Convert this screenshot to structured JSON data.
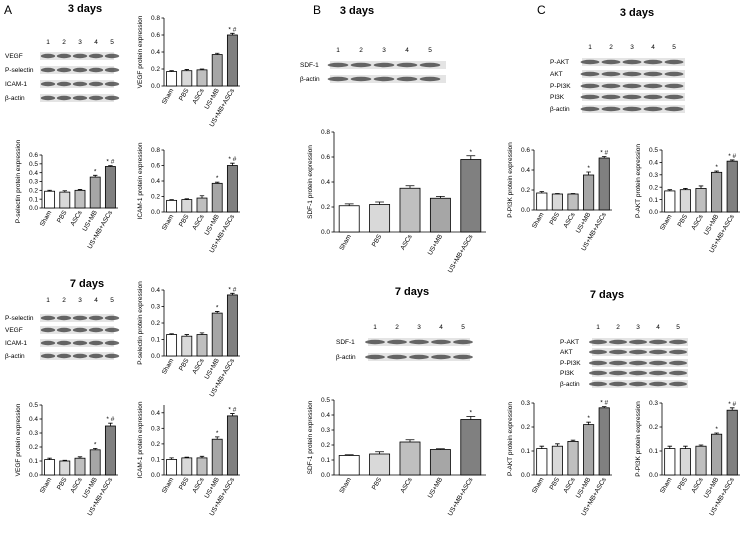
{
  "panels": [
    {
      "label": "A",
      "titles": [
        "3 days",
        "7 days"
      ]
    },
    {
      "label": "B",
      "titles": [
        "3 days",
        "7 days"
      ]
    },
    {
      "label": "C",
      "titles": [
        "3 days",
        "7 days"
      ]
    }
  ],
  "blots": [
    {
      "lanes": [
        "1",
        "2",
        "3",
        "4",
        "5"
      ],
      "proteins": [
        "VEGF",
        "P-selectin",
        "ICAM-1",
        "β-actin"
      ]
    },
    {
      "lanes": [
        "1",
        "2",
        "3",
        "4",
        "5"
      ],
      "proteins": [
        "P-selectin",
        "VEGF",
        "ICAM-1",
        "β-actin"
      ]
    },
    {
      "lanes": [
        "1",
        "2",
        "3",
        "4",
        "5"
      ],
      "proteins": [
        "SDF-1",
        "β-actin"
      ]
    },
    {
      "lanes": [
        "1",
        "2",
        "3",
        "4",
        "5"
      ],
      "proteins": [
        "SDF-1",
        "β-actin"
      ]
    },
    {
      "lanes": [
        "1",
        "2",
        "3",
        "4",
        "5"
      ],
      "proteins": [
        "P-AKT",
        "AKT",
        "P-PI3K",
        "PI3K",
        "β-actin"
      ]
    },
    {
      "lanes": [
        "1",
        "2",
        "3",
        "4",
        "5"
      ],
      "proteins": [
        "P-AKT",
        "AKT",
        "P-PI3K",
        "PI3K",
        "β-actin"
      ]
    }
  ],
  "chart_data": [
    {
      "type": "bar",
      "ylabel": "VEGF protein expression",
      "categories": [
        "Sham",
        "PBS",
        "ASCs",
        "US+MB",
        "US+MB+ASCs"
      ],
      "values": [
        0.17,
        0.18,
        0.19,
        0.37,
        0.6
      ],
      "errors": [
        0.01,
        0.015,
        0.01,
        0.015,
        0.02
      ],
      "annotations": [
        null,
        null,
        null,
        null,
        "* #"
      ],
      "colors": [
        "#ffffff",
        "#d9d9d9",
        "#bfbfbf",
        "#a6a6a6",
        "#808080"
      ],
      "ylim": [
        0,
        0.8
      ],
      "yticks": [
        {
          "value": 0,
          "label": "0.0"
        },
        0.2,
        0.4,
        0.6,
        0.8
      ]
    },
    {
      "type": "bar",
      "ylabel": "P-selectin protein expression",
      "categories": [
        "Sham",
        "PBS",
        "ASCs",
        "US+MB",
        "US+MB+ASCs"
      ],
      "values": [
        0.19,
        0.18,
        0.2,
        0.35,
        0.47
      ],
      "errors": [
        0.01,
        0.015,
        0.01,
        0.02,
        0.01
      ],
      "annotations": [
        null,
        null,
        null,
        "*",
        "* #"
      ],
      "colors": [
        "#ffffff",
        "#d9d9d9",
        "#bfbfbf",
        "#a6a6a6",
        "#808080"
      ],
      "ylim": [
        0,
        0.6
      ],
      "yticks": [
        {
          "value": 0,
          "label": "0.0"
        },
        0.1,
        0.2,
        0.3,
        0.4,
        0.5,
        0.6
      ]
    },
    {
      "type": "bar",
      "ylabel": "ICAM-1 protein expression",
      "categories": [
        "Sham",
        "PBS",
        "ASCs",
        "US+MB",
        "US+MB+ASCs"
      ],
      "values": [
        0.15,
        0.16,
        0.18,
        0.37,
        0.6
      ],
      "errors": [
        0.01,
        0.01,
        0.03,
        0.015,
        0.03
      ],
      "annotations": [
        null,
        null,
        null,
        "*",
        "* #"
      ],
      "colors": [
        "#ffffff",
        "#d9d9d9",
        "#bfbfbf",
        "#a6a6a6",
        "#808080"
      ],
      "ylim": [
        0,
        0.8
      ],
      "yticks": [
        {
          "value": 0,
          "label": "0.0"
        },
        0.2,
        0.4,
        0.6,
        0.8
      ]
    },
    {
      "type": "bar",
      "ylabel": "P-selectin protein expression",
      "categories": [
        "Sham",
        "PBS",
        "ASCs",
        "US+MB",
        "US+MB+ASCs"
      ],
      "values": [
        0.13,
        0.12,
        0.13,
        0.26,
        0.37
      ],
      "errors": [
        0.005,
        0.01,
        0.01,
        0.01,
        0.01
      ],
      "annotations": [
        null,
        null,
        null,
        "*",
        "* #"
      ],
      "colors": [
        "#ffffff",
        "#d9d9d9",
        "#bfbfbf",
        "#a6a6a6",
        "#808080"
      ],
      "ylim": [
        0,
        0.4
      ],
      "yticks": [
        {
          "value": 0,
          "label": "0.0"
        },
        0.1,
        0.2,
        0.3,
        0.4
      ]
    },
    {
      "type": "bar",
      "ylabel": "VEGF protein expression",
      "categories": [
        "Sham",
        "PBS",
        "ASCs",
        "US+MB",
        "US+MB+ASCs"
      ],
      "values": [
        0.11,
        0.1,
        0.12,
        0.18,
        0.35
      ],
      "errors": [
        0.01,
        0.005,
        0.01,
        0.01,
        0.02
      ],
      "annotations": [
        null,
        null,
        null,
        "*",
        "* #"
      ],
      "colors": [
        "#ffffff",
        "#d9d9d9",
        "#bfbfbf",
        "#a6a6a6",
        "#808080"
      ],
      "ylim": [
        0,
        0.5
      ],
      "yticks": [
        {
          "value": 0,
          "label": "0.0"
        },
        0.1,
        0.2,
        0.3,
        0.4,
        0.5
      ]
    },
    {
      "type": "bar",
      "ylabel": "ICAM-1 protein expression",
      "categories": [
        "Sham",
        "PBS",
        "ASCs",
        "US+MB",
        "US+MB+ASCs"
      ],
      "values": [
        0.1,
        0.11,
        0.11,
        0.23,
        0.38
      ],
      "errors": [
        0.01,
        0.005,
        0.01,
        0.015,
        0.015
      ],
      "annotations": [
        null,
        null,
        null,
        "*",
        "* #"
      ],
      "colors": [
        "#ffffff",
        "#d9d9d9",
        "#bfbfbf",
        "#a6a6a6",
        "#808080"
      ],
      "ylim": [
        0,
        0.45
      ],
      "yticks": [
        {
          "value": 0,
          "label": "0.0"
        },
        0.1,
        0.2,
        0.3,
        0.4
      ]
    },
    {
      "type": "bar",
      "ylabel": "SDF-1 protein expression",
      "categories": [
        "Sham",
        "PBS",
        "ASCs",
        "US+MB",
        "US+MB+ASCs"
      ],
      "values": [
        0.21,
        0.22,
        0.35,
        0.27,
        0.58
      ],
      "errors": [
        0.015,
        0.02,
        0.02,
        0.015,
        0.03
      ],
      "annotations": [
        null,
        null,
        null,
        null,
        "*"
      ],
      "colors": [
        "#ffffff",
        "#d9d9d9",
        "#bfbfbf",
        "#a6a6a6",
        "#808080"
      ],
      "ylim": [
        0,
        0.8
      ],
      "yticks": [
        {
          "value": 0,
          "label": "0.0"
        },
        0.2,
        0.4,
        0.6,
        0.8
      ]
    },
    {
      "type": "bar",
      "ylabel": "SDF-1 protein expression",
      "categories": [
        "Sham",
        "PBS",
        "ASCs",
        "US+MB",
        "US+MB+ASCs"
      ],
      "values": [
        0.13,
        0.14,
        0.22,
        0.17,
        0.37
      ],
      "errors": [
        0.005,
        0.015,
        0.015,
        0.005,
        0.02
      ],
      "annotations": [
        null,
        null,
        null,
        null,
        "*"
      ],
      "colors": [
        "#ffffff",
        "#d9d9d9",
        "#bfbfbf",
        "#a6a6a6",
        "#808080"
      ],
      "ylim": [
        0,
        0.5
      ],
      "yticks": [
        {
          "value": 0,
          "label": "0.0"
        },
        0.1,
        0.2,
        0.3,
        0.4,
        0.5
      ]
    },
    {
      "type": "bar",
      "ylabel": "P-PI3K protein expression",
      "categories": [
        "Sham",
        "PBS",
        "ASCs",
        "US+MB",
        "US+MB+ASCs"
      ],
      "values": [
        0.17,
        0.16,
        0.16,
        0.35,
        0.52
      ],
      "errors": [
        0.015,
        0.005,
        0.005,
        0.03,
        0.015
      ],
      "annotations": [
        null,
        null,
        null,
        "*",
        "* #"
      ],
      "colors": [
        "#ffffff",
        "#d9d9d9",
        "#bfbfbf",
        "#a6a6a6",
        "#808080"
      ],
      "ylim": [
        0,
        0.6
      ],
      "yticks": [
        {
          "value": 0,
          "label": "0.0"
        },
        0.2,
        0.4,
        0.6
      ]
    },
    {
      "type": "bar",
      "ylabel": "P-AKT protein expression",
      "categories": [
        "Sham",
        "PBS",
        "ASCs",
        "US+MB",
        "US+MB+ASCs"
      ],
      "values": [
        0.17,
        0.18,
        0.19,
        0.32,
        0.41
      ],
      "errors": [
        0.01,
        0.01,
        0.02,
        0.01,
        0.01
      ],
      "annotations": [
        null,
        null,
        null,
        "*",
        "* #"
      ],
      "colors": [
        "#ffffff",
        "#d9d9d9",
        "#bfbfbf",
        "#a6a6a6",
        "#808080"
      ],
      "ylim": [
        0,
        0.5
      ],
      "yticks": [
        {
          "value": 0,
          "label": "0.0"
        },
        0.1,
        0.2,
        0.3,
        0.4,
        0.5
      ]
    },
    {
      "type": "bar",
      "ylabel": "P-AKT protein expression",
      "categories": [
        "Sham",
        "PBS",
        "ASCs",
        "US+MB",
        "US+MB+ASCs"
      ],
      "values": [
        0.11,
        0.12,
        0.14,
        0.21,
        0.28
      ],
      "errors": [
        0.01,
        0.01,
        0.005,
        0.01,
        0.005
      ],
      "annotations": [
        null,
        null,
        null,
        "*",
        "* #"
      ],
      "colors": [
        "#ffffff",
        "#d9d9d9",
        "#bfbfbf",
        "#a6a6a6",
        "#808080"
      ],
      "ylim": [
        0,
        0.3
      ],
      "yticks": [
        {
          "value": 0,
          "label": "0.0"
        },
        0.1,
        0.2,
        0.3
      ]
    },
    {
      "type": "bar",
      "ylabel": "P-PI3K protein expression",
      "categories": [
        "Sham",
        "PBS",
        "ASCs",
        "US+MB",
        "US+MB+ASCs"
      ],
      "values": [
        0.11,
        0.11,
        0.12,
        0.17,
        0.27
      ],
      "errors": [
        0.01,
        0.01,
        0.005,
        0.005,
        0.01
      ],
      "annotations": [
        null,
        null,
        null,
        "*",
        "* #"
      ],
      "colors": [
        "#ffffff",
        "#d9d9d9",
        "#bfbfbf",
        "#a6a6a6",
        "#808080"
      ],
      "ylim": [
        0,
        0.3
      ],
      "yticks": [
        {
          "value": 0,
          "label": "0.0"
        },
        0.1,
        0.2,
        0.3
      ]
    }
  ]
}
